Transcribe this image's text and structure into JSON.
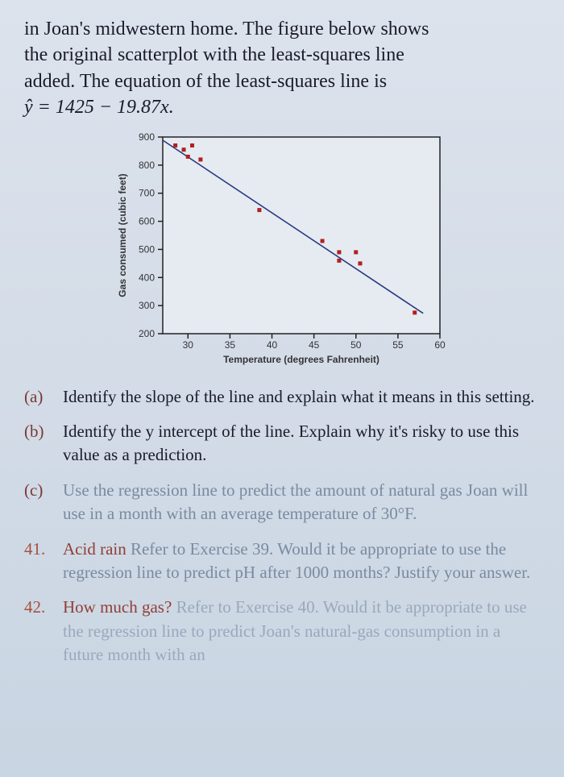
{
  "intro": {
    "line1": "in Joan's midwestern home. The figure below shows",
    "line2": "the original scatterplot with the least-squares line",
    "line3": "added. The equation of the least-squares line is",
    "line4": "ŷ = 1425 − 19.87x."
  },
  "chart": {
    "type": "scatter",
    "background_color": "#e6ebf2",
    "border_color": "#222222",
    "xlabel": "Temperature (degrees Fahrenheit)",
    "ylabel": "Gas consumed (cubic feet)",
    "xlim": [
      27,
      60
    ],
    "ylim": [
      200,
      900
    ],
    "xticks": [
      30,
      35,
      40,
      45,
      50,
      55,
      60
    ],
    "yticks": [
      200,
      300,
      400,
      500,
      600,
      700,
      800,
      900
    ],
    "points": [
      {
        "x": 28.5,
        "y": 870
      },
      {
        "x": 29.5,
        "y": 855
      },
      {
        "x": 30.0,
        "y": 830
      },
      {
        "x": 30.5,
        "y": 870
      },
      {
        "x": 31.5,
        "y": 820
      },
      {
        "x": 38.5,
        "y": 640
      },
      {
        "x": 46.0,
        "y": 530
      },
      {
        "x": 48.0,
        "y": 490
      },
      {
        "x": 48.0,
        "y": 460
      },
      {
        "x": 50.0,
        "y": 490
      },
      {
        "x": 50.5,
        "y": 450
      },
      {
        "x": 57.0,
        "y": 275
      }
    ],
    "fit_line": {
      "slope": -19.87,
      "intercept": 1425,
      "x1": 27,
      "x2": 58
    },
    "point_color": "#b02020",
    "line_color": "#2a3a80",
    "grid": false
  },
  "questions": {
    "a": {
      "label": "(a)",
      "text": "Identify the slope of the line and explain what it means in this setting."
    },
    "b": {
      "label": "(b)",
      "text": "Identify the y intercept of the line. Explain why it's risky to use this value as a prediction."
    },
    "c": {
      "label": "(c)",
      "text": "Use the regression line to predict the amount of natural gas Joan will use in a month with an average temperature of 30°F."
    },
    "q41": {
      "label": "41.",
      "title": "Acid rain",
      "text": " Refer to Exercise 39. Would it be appropriate to use the regression line to predict pH after 1000 months? Justify your answer."
    },
    "q42": {
      "label": "42.",
      "title": "How much gas?",
      "text": " Refer to Exercise 40. Would it be appropriate to use the regression line to predict Joan's natural-gas consumption in a future month with an"
    }
  }
}
